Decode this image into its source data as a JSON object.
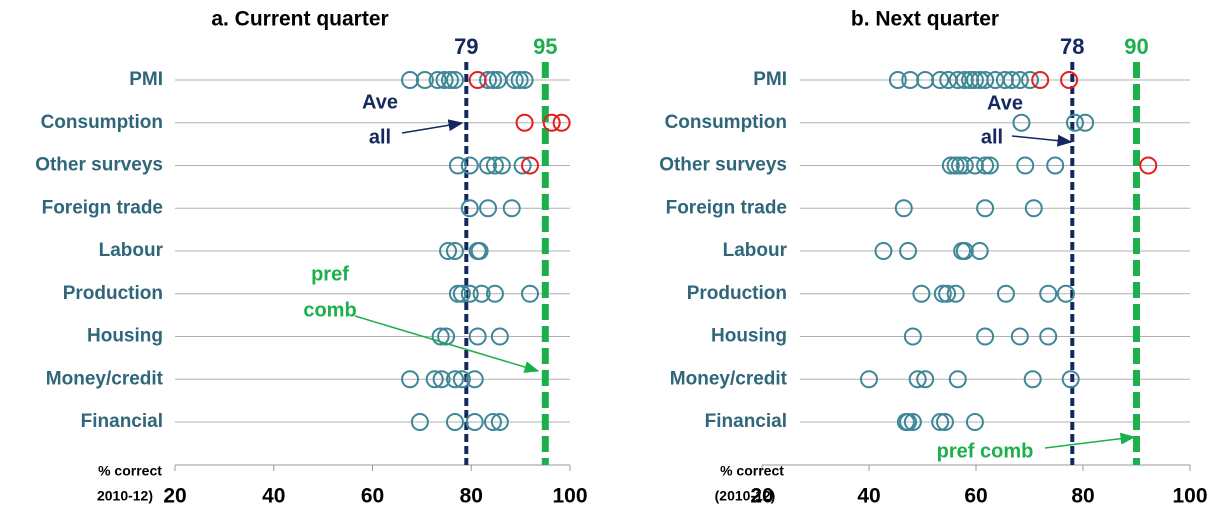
{
  "chart_data": [
    {
      "type": "dotplot",
      "title": "a. Current quarter",
      "categories": [
        "PMI",
        "Consumption",
        "Other surveys",
        "Foreign trade",
        "Labour",
        "Production",
        "Housing",
        "Money/credit",
        "Financial"
      ],
      "values": [
        [
          67.6,
          70.6,
          73.2,
          74.6,
          75.7,
          76.7,
          83.4,
          84.4,
          85.4,
          88.8,
          89.8,
          90.8
        ],
        [],
        [
          77.3,
          79.7,
          83.4,
          84.8,
          86.2,
          90.4
        ],
        [
          79.7,
          83.4,
          88.2
        ],
        [
          75.3,
          76.7,
          81.3,
          81.7
        ],
        [
          77.3,
          78.1,
          79.7,
          82.1,
          84.8,
          91.9
        ],
        [
          73.8,
          74.9,
          81.3,
          85.8
        ],
        [
          67.6,
          72.6,
          74.0,
          76.7,
          78.1,
          80.7
        ],
        [
          69.6,
          76.7,
          80.7,
          84.4,
          85.8
        ]
      ],
      "highlight_values": [
        [
          81.3
        ],
        [
          90.8,
          96.3,
          98.3
        ],
        [
          91.9
        ],
        [],
        [],
        [],
        [],
        [],
        []
      ],
      "color": "#3d8797",
      "highlight_color": "#e41e1e",
      "reference_lines": [
        {
          "value": 79,
          "color": "#14285f"
        },
        {
          "value": 95,
          "color": "#1cb04c"
        }
      ],
      "annotations": [
        {
          "text": [
            "Ave",
            "all"
          ],
          "color": "#14285f"
        },
        {
          "text": [
            "pref",
            "comb"
          ],
          "color": "#1cb04c"
        }
      ],
      "xlim": [
        20,
        100
      ],
      "xticks": [
        20,
        40,
        60,
        80,
        100
      ],
      "axis_label": [
        "% correct",
        "2010-12)"
      ]
    },
    {
      "type": "dotplot",
      "title": "b. Next quarter",
      "categories": [
        "PMI",
        "Consumption",
        "Other surveys",
        "Foreign trade",
        "Labour",
        "Production",
        "Housing",
        "Money/credit",
        "Financial"
      ],
      "values": [
        [
          45.4,
          47.7,
          50.5,
          53.3,
          54.8,
          56.6,
          57.9,
          58.9,
          59.8,
          60.7,
          61.7,
          63.6,
          65.4,
          66.7,
          68.2,
          70.1
        ],
        [
          68.5,
          78.5,
          80.4
        ],
        [
          55.3,
          56.2,
          57.0,
          57.9,
          59.8,
          61.7,
          62.6,
          69.2,
          74.8
        ],
        [
          46.5,
          61.7,
          70.8
        ],
        [
          42.7,
          47.3,
          57.4,
          57.9,
          60.7
        ],
        [
          49.8,
          53.8,
          54.6,
          56.2,
          65.6,
          73.5,
          76.8
        ],
        [
          48.2,
          61.7,
          68.2,
          73.5
        ],
        [
          40.0,
          49.1,
          50.5,
          56.6,
          70.6,
          77.7
        ],
        [
          46.9,
          47.3,
          48.2,
          53.3,
          54.2,
          59.8
        ]
      ],
      "highlight_values": [
        [
          72.0,
          77.4
        ],
        [],
        [
          92.2
        ],
        [],
        [],
        [],
        [],
        [],
        []
      ],
      "color": "#3d8797",
      "highlight_color": "#e41e1e",
      "reference_lines": [
        {
          "value": 78,
          "color": "#14285f"
        },
        {
          "value": 90,
          "color": "#1cb04c"
        }
      ],
      "annotations": [
        {
          "text": [
            "Ave",
            "all"
          ],
          "color": "#14285f"
        },
        {
          "text": [
            "pref comb"
          ],
          "color": "#1cb04c"
        }
      ],
      "xlim": [
        20,
        100
      ],
      "xticks": [
        20,
        40,
        60,
        80,
        100
      ],
      "axis_label": [
        "% correct",
        "(2010-12)"
      ]
    }
  ]
}
